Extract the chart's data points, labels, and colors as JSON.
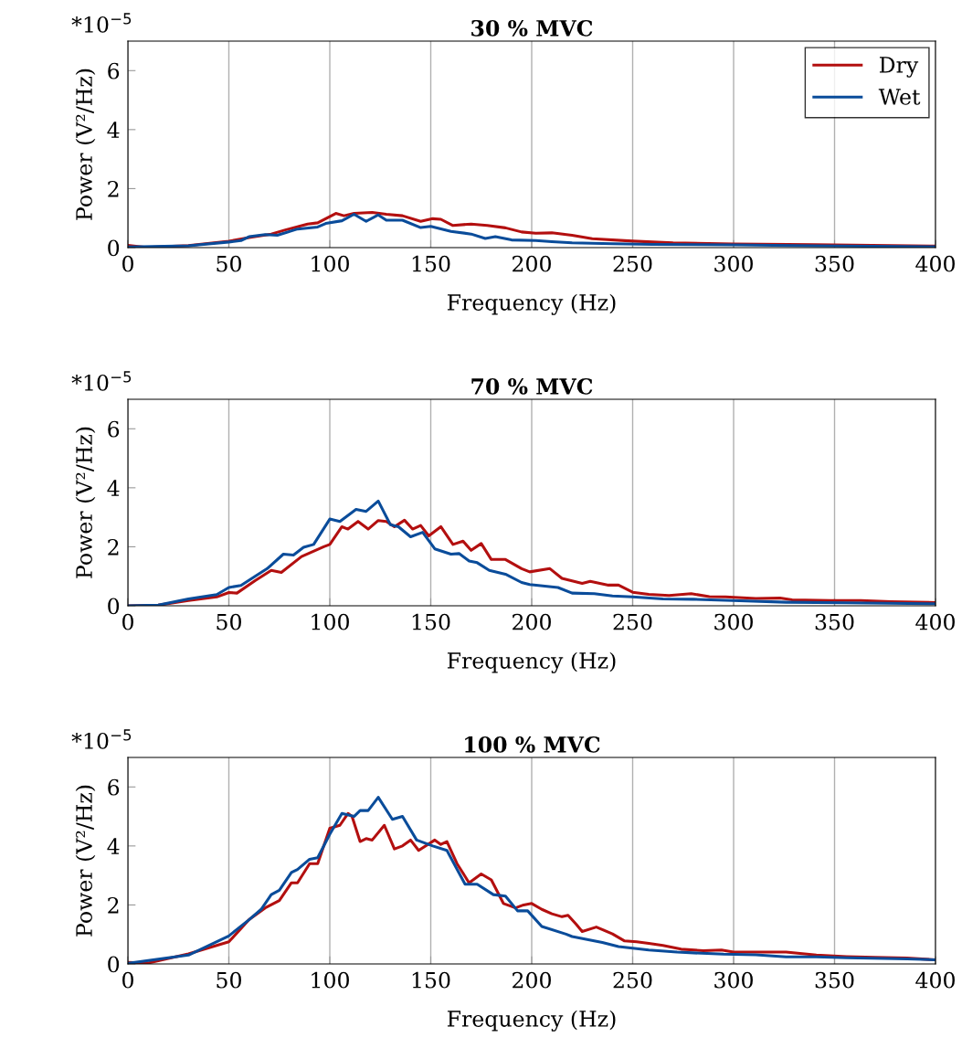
{
  "chart_data": [
    {
      "type": "line",
      "title": "30 % MVC",
      "xlabel": "Frequency (Hz)",
      "ylabel": "Power (V²/Hz)",
      "annotations": [
        "*10$^{−5}$"
      ],
      "xlim": [
        0,
        400
      ],
      "xticks": [
        0,
        50,
        100,
        150,
        200,
        250,
        300,
        350,
        400
      ],
      "ylim": [
        0,
        7
      ],
      "yticks": [
        0,
        2,
        4,
        6
      ],
      "grid": "x",
      "legend": "top right",
      "marker": "none",
      "line_style": "solid",
      "series": [
        {
          "name": "Dry",
          "color": "#b30f0f",
          "x": [
            0,
            9,
            30,
            50,
            60,
            71,
            78,
            89,
            94,
            103,
            107,
            112,
            121,
            128,
            136,
            145,
            151,
            155,
            161,
            170,
            178,
            187,
            195,
            202,
            210,
            220,
            230,
            250,
            270,
            300,
            340,
            400
          ],
          "values": [
            0.08,
            0.01,
            0.07,
            0.22,
            0.34,
            0.46,
            0.6,
            0.8,
            0.84,
            1.16,
            1.08,
            1.16,
            1.19,
            1.13,
            1.08,
            0.89,
            0.98,
            0.96,
            0.75,
            0.8,
            0.75,
            0.67,
            0.53,
            0.49,
            0.5,
            0.42,
            0.3,
            0.22,
            0.16,
            0.12,
            0.1,
            0.05
          ]
        },
        {
          "name": "Wet",
          "color": "#0a4c9a",
          "x": [
            0,
            30,
            50,
            56,
            60,
            68,
            74,
            84,
            94,
            98,
            106,
            112,
            118,
            124,
            128,
            136,
            145,
            150,
            160,
            170,
            177,
            182,
            190,
            202,
            210,
            220,
            240,
            260,
            300,
            340,
            400
          ],
          "values": [
            0.02,
            0.06,
            0.19,
            0.24,
            0.37,
            0.44,
            0.42,
            0.63,
            0.7,
            0.82,
            0.91,
            1.13,
            0.89,
            1.11,
            0.93,
            0.93,
            0.68,
            0.72,
            0.55,
            0.46,
            0.31,
            0.37,
            0.26,
            0.24,
            0.2,
            0.16,
            0.13,
            0.11,
            0.09,
            0.06,
            0.03
          ]
        }
      ]
    },
    {
      "type": "line",
      "title": "70 % MVC",
      "xlabel": "Frequency (Hz)",
      "ylabel": "Power (V²/Hz)",
      "annotations": [
        "*10$^{−5}$"
      ],
      "xlim": [
        0,
        400
      ],
      "xticks": [
        0,
        50,
        100,
        150,
        200,
        250,
        300,
        350,
        400
      ],
      "ylim": [
        0,
        7
      ],
      "yticks": [
        0,
        2,
        4,
        6
      ],
      "grid": "x",
      "marker": "none",
      "line_style": "solid",
      "series": [
        {
          "color": "#b30f0f",
          "x": [
            0,
            15,
            30,
            44,
            50,
            54,
            63,
            71,
            76,
            86,
            97,
            100,
            106,
            109,
            114,
            119,
            124,
            128,
            132,
            137,
            141,
            145,
            149,
            155,
            161,
            166,
            170,
            175,
            180,
            187,
            195,
            199,
            209,
            215,
            225,
            229,
            238,
            243,
            250,
            258,
            268,
            279,
            288,
            296,
            311,
            323,
            329,
            348,
            363,
            378,
            400
          ],
          "values": [
            0,
            0.02,
            0.18,
            0.3,
            0.45,
            0.43,
            0.85,
            1.2,
            1.13,
            1.67,
            2.0,
            2.08,
            2.68,
            2.6,
            2.86,
            2.6,
            2.89,
            2.86,
            2.68,
            2.9,
            2.6,
            2.72,
            2.37,
            2.68,
            2.08,
            2.19,
            1.88,
            2.11,
            1.57,
            1.57,
            1.26,
            1.15,
            1.26,
            0.93,
            0.76,
            0.83,
            0.7,
            0.7,
            0.46,
            0.39,
            0.35,
            0.41,
            0.31,
            0.3,
            0.25,
            0.26,
            0.2,
            0.18,
            0.18,
            0.14,
            0.11
          ]
        },
        {
          "color": "#0a4c9a",
          "x": [
            0,
            15,
            30,
            44,
            50,
            56,
            63,
            69,
            77,
            82,
            87,
            92,
            100,
            105,
            113,
            118,
            124,
            130,
            134,
            140,
            146,
            152,
            160,
            164,
            169,
            173,
            179,
            187,
            195,
            199,
            213,
            220,
            231,
            240,
            250,
            265,
            280,
            303,
            326,
            356,
            400
          ],
          "values": [
            0,
            0.02,
            0.23,
            0.38,
            0.62,
            0.69,
            1.0,
            1.26,
            1.75,
            1.72,
            1.98,
            2.08,
            2.94,
            2.86,
            3.27,
            3.2,
            3.55,
            2.75,
            2.68,
            2.34,
            2.49,
            1.93,
            1.75,
            1.77,
            1.52,
            1.46,
            1.2,
            1.07,
            0.79,
            0.72,
            0.62,
            0.43,
            0.41,
            0.33,
            0.3,
            0.23,
            0.22,
            0.17,
            0.12,
            0.1,
            0.07
          ]
        }
      ]
    },
    {
      "type": "line",
      "title": "100 % MVC",
      "xlabel": "Frequency (Hz)",
      "ylabel": "Power (V²/Hz)",
      "annotations": [
        "*10$^{−5}$"
      ],
      "xlim": [
        0,
        400
      ],
      "xticks": [
        0,
        50,
        100,
        150,
        200,
        250,
        300,
        350,
        400
      ],
      "ylim": [
        0,
        7
      ],
      "yticks": [
        0,
        2,
        4,
        6
      ],
      "grid": "x",
      "marker": "none",
      "line_style": "solid",
      "series": [
        {
          "color": "#b30f0f",
          "x": [
            0,
            10,
            30,
            50,
            60,
            68,
            75,
            81,
            84,
            90,
            94,
            100,
            105,
            109,
            111,
            115,
            118,
            121,
            127,
            132,
            136,
            140,
            144,
            152,
            155,
            158,
            163,
            169,
            175,
            180,
            186,
            192,
            196,
            200,
            205,
            210,
            215,
            218,
            222,
            225,
            232,
            240,
            246,
            252,
            258,
            265,
            274,
            285,
            294,
            300,
            315,
            326,
            341,
            356,
            370,
            386,
            400
          ],
          "values": [
            0.05,
            0.03,
            0.34,
            0.75,
            1.5,
            1.9,
            2.15,
            2.75,
            2.75,
            3.4,
            3.4,
            4.6,
            4.7,
            5.1,
            5.0,
            4.15,
            4.25,
            4.2,
            4.7,
            3.9,
            4.0,
            4.2,
            3.85,
            4.2,
            4.05,
            4.15,
            3.4,
            2.75,
            3.05,
            2.85,
            2.05,
            1.9,
            2.0,
            2.05,
            1.85,
            1.7,
            1.6,
            1.65,
            1.35,
            1.1,
            1.25,
            1.02,
            0.78,
            0.75,
            0.7,
            0.63,
            0.5,
            0.45,
            0.47,
            0.4,
            0.4,
            0.4,
            0.3,
            0.25,
            0.22,
            0.2,
            0.14
          ]
        },
        {
          "color": "#0a4c9a",
          "x": [
            0,
            30,
            50,
            60,
            66,
            71,
            75,
            81,
            84,
            90,
            94,
            100,
            106,
            112,
            115,
            119,
            124,
            131,
            136,
            143,
            151,
            158,
            167,
            173,
            181,
            187,
            193,
            198,
            205,
            217,
            220,
            235,
            243,
            258,
            272,
            295,
            311,
            326,
            341,
            356,
            386,
            400
          ],
          "values": [
            0.02,
            0.3,
            0.95,
            1.5,
            1.85,
            2.35,
            2.5,
            3.1,
            3.2,
            3.55,
            3.6,
            4.4,
            5.1,
            5.0,
            5.2,
            5.2,
            5.65,
            4.9,
            5.0,
            4.2,
            4.0,
            3.85,
            2.7,
            2.7,
            2.35,
            2.3,
            1.8,
            1.8,
            1.27,
            1.01,
            0.93,
            0.73,
            0.59,
            0.47,
            0.4,
            0.33,
            0.31,
            0.24,
            0.24,
            0.21,
            0.17,
            0.14
          ]
        }
      ]
    }
  ]
}
